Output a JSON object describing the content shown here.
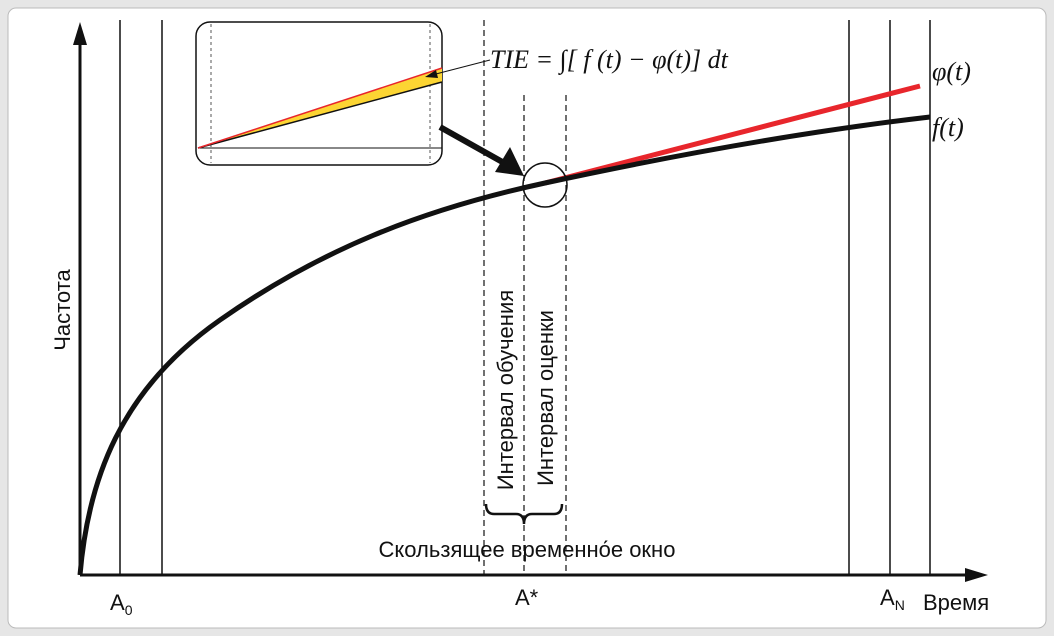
{
  "axes": {
    "y_label": "Частота",
    "x_label": "Время"
  },
  "markers": [
    {
      "main": "A",
      "sub": "0"
    },
    {
      "main": "A*"
    },
    {
      "main": "A",
      "sub": "N"
    }
  ],
  "formula": "TIE = ∫[ f (t) − φ(t)] dt",
  "curves": {
    "phi": "φ(t)",
    "f": "f(t)"
  },
  "intervals": {
    "learning": "Интервал обучения",
    "estimation": "Интервал оценки",
    "window": "Скользящее временно́е окно"
  }
}
